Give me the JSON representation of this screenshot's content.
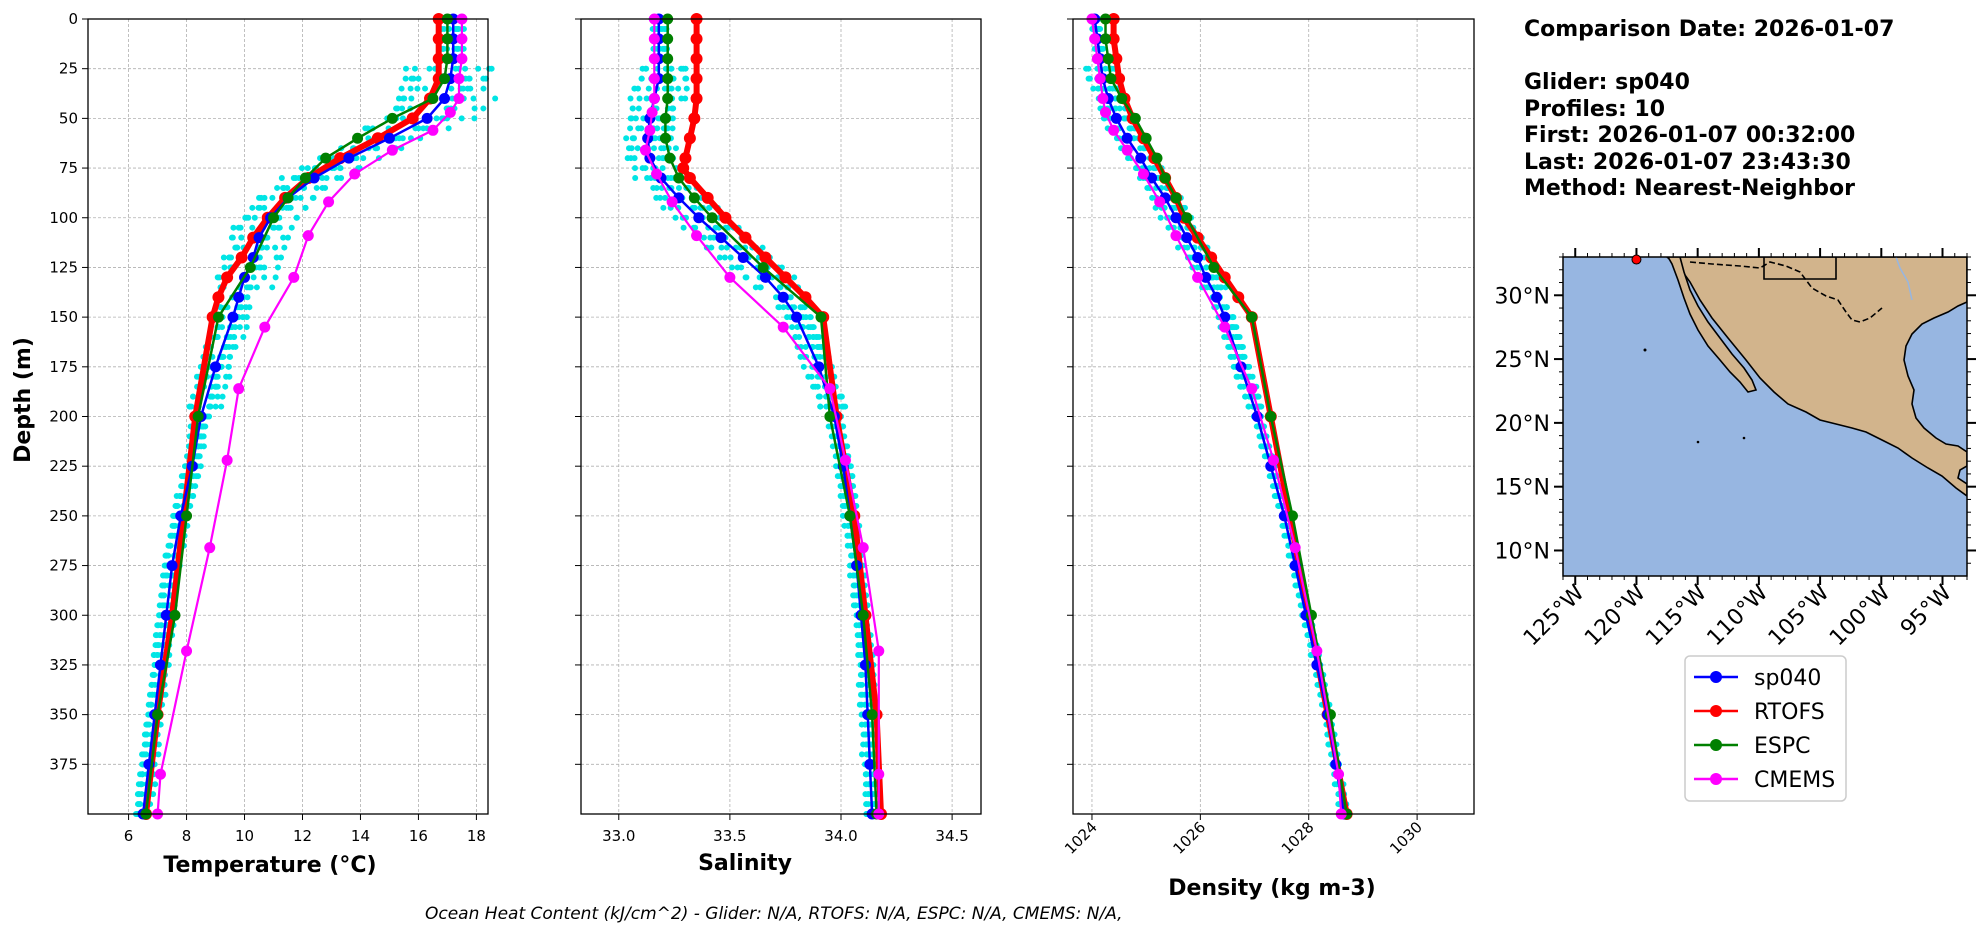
{
  "info": {
    "comparison_date": "Comparison Date: 2026-01-07",
    "glider": "Glider: sp040",
    "profiles": "Profiles: 10",
    "first": "First: 2026-01-07 00:32:00",
    "last": "Last: 2026-01-07 23:43:30",
    "method": "Method: Nearest-Neighbor"
  },
  "footer": "Ocean Heat Content (kJ/cm^2) - Glider: N/A,  RTOFS: N/A,  ESPC: N/A,  CMEMS: N/A,",
  "colors": {
    "sp040": "#0000ff",
    "RTOFS": "#ff0000",
    "ESPC": "#008000",
    "CMEMS": "#ff00ff",
    "glider_profiles": "#00e5e5",
    "ocean": "#97b6e1",
    "land": "#d2b48c"
  },
  "legend": {
    "entries": [
      "sp040",
      "RTOFS",
      "ESPC",
      "CMEMS"
    ],
    "placement": "below-map"
  },
  "map": {
    "lat_labels": [
      "30°N",
      "25°N",
      "20°N",
      "15°N",
      "10°N"
    ],
    "lon_labels": [
      "125°W",
      "120°W",
      "115°W",
      "110°W",
      "105°W",
      "100°W",
      "95°W"
    ],
    "lat_values": [
      30,
      25,
      20,
      15,
      10
    ],
    "lon_values": [
      -125,
      -120,
      -115,
      -110,
      -105,
      -100,
      -95
    ],
    "extent": {
      "lon": [
        -126,
        -93
      ],
      "lat": [
        8,
        33
      ]
    },
    "glider_position": {
      "lon": -120,
      "lat": 32.8
    }
  },
  "chart_data": [
    {
      "type": "line",
      "xlabel": "Temperature (°C)",
      "ylabel": "Depth (m)",
      "xlim": [
        4.6,
        18.4
      ],
      "ylim": [
        400,
        0
      ],
      "xticks": [
        "6",
        "8",
        "10",
        "12",
        "14",
        "16",
        "18"
      ],
      "xtick_values": [
        6,
        8,
        10,
        12,
        14,
        16,
        18
      ],
      "yticks": [
        "0",
        "25",
        "50",
        "75",
        "100",
        "125",
        "150",
        "175",
        "200",
        "225",
        "250",
        "275",
        "300",
        "325",
        "350",
        "375"
      ],
      "ytick_values": [
        0,
        25,
        50,
        75,
        100,
        125,
        150,
        175,
        200,
        225,
        250,
        275,
        300,
        325,
        350,
        375
      ],
      "grid": true,
      "series": [
        {
          "name": "sp040",
          "depth": [
            0,
            10,
            20,
            30,
            40,
            50,
            60,
            70,
            80,
            90,
            100,
            110,
            120,
            130,
            140,
            150,
            175,
            200,
            225,
            250,
            275,
            300,
            325,
            350,
            375,
            400
          ],
          "values": [
            17.2,
            17.2,
            17.2,
            17.1,
            16.9,
            16.3,
            15.0,
            13.6,
            12.4,
            11.5,
            10.9,
            10.5,
            10.3,
            10.0,
            9.8,
            9.6,
            9.0,
            8.5,
            8.2,
            7.8,
            7.5,
            7.3,
            7.1,
            6.9,
            6.7,
            6.5
          ]
        },
        {
          "name": "RTOFS",
          "depth": [
            0,
            10,
            20,
            30,
            40,
            50,
            60,
            70,
            80,
            90,
            100,
            110,
            120,
            130,
            140,
            150,
            200,
            250,
            300,
            350,
            400
          ],
          "values": [
            16.7,
            16.7,
            16.7,
            16.7,
            16.4,
            15.8,
            14.6,
            13.3,
            12.2,
            11.4,
            10.8,
            10.3,
            9.9,
            9.4,
            9.1,
            8.9,
            8.3,
            7.9,
            7.5,
            7.0,
            6.6
          ]
        },
        {
          "name": "ESPC",
          "depth": [
            0,
            10,
            20,
            30,
            40,
            50,
            60,
            70,
            80,
            90,
            100,
            125,
            150,
            200,
            250,
            300,
            350,
            400
          ],
          "values": [
            17.0,
            17.0,
            17.0,
            16.9,
            16.5,
            15.1,
            13.9,
            12.8,
            12.1,
            11.5,
            11.0,
            10.2,
            9.1,
            8.4,
            8.0,
            7.6,
            7.0,
            6.6
          ]
        },
        {
          "name": "CMEMS",
          "depth": [
            0,
            10,
            20,
            30,
            40,
            47,
            56,
            66,
            78,
            92,
            109,
            130,
            155,
            186,
            222,
            266,
            318,
            380,
            400
          ],
          "values": [
            17.5,
            17.5,
            17.5,
            17.4,
            17.4,
            17.1,
            16.5,
            15.1,
            13.8,
            12.9,
            12.2,
            11.7,
            10.7,
            9.8,
            9.4,
            8.8,
            8.0,
            7.1,
            7.0
          ]
        }
      ]
    },
    {
      "type": "line",
      "xlabel": "Salinity",
      "ylabel": "",
      "xlim": [
        32.83,
        34.63
      ],
      "ylim": [
        400,
        0
      ],
      "xticks": [
        "33.0",
        "33.5",
        "34.0",
        "34.5"
      ],
      "xtick_values": [
        33.0,
        33.5,
        34.0,
        34.5
      ],
      "grid": true,
      "series": [
        {
          "name": "sp040",
          "depth": [
            0,
            10,
            20,
            30,
            40,
            50,
            60,
            70,
            80,
            90,
            100,
            110,
            120,
            130,
            140,
            150,
            175,
            200,
            225,
            250,
            275,
            300,
            325,
            350,
            375,
            400
          ],
          "values": [
            33.18,
            33.18,
            33.18,
            33.18,
            33.16,
            33.14,
            33.13,
            33.14,
            33.19,
            33.27,
            33.36,
            33.46,
            33.56,
            33.66,
            33.74,
            33.8,
            33.9,
            33.97,
            34.01,
            34.04,
            34.07,
            34.09,
            34.11,
            34.12,
            34.13,
            34.14
          ]
        },
        {
          "name": "RTOFS",
          "depth": [
            0,
            10,
            20,
            30,
            40,
            50,
            60,
            70,
            75,
            80,
            90,
            100,
            110,
            120,
            130,
            140,
            150,
            200,
            250,
            300,
            350,
            400
          ],
          "values": [
            33.35,
            33.35,
            33.35,
            33.35,
            33.35,
            33.34,
            33.32,
            33.3,
            33.29,
            33.32,
            33.4,
            33.48,
            33.57,
            33.66,
            33.75,
            33.84,
            33.92,
            33.98,
            34.06,
            34.11,
            34.16,
            34.18
          ]
        },
        {
          "name": "ESPC",
          "depth": [
            0,
            10,
            20,
            30,
            40,
            50,
            60,
            70,
            80,
            90,
            100,
            125,
            150,
            200,
            250,
            300,
            350,
            400
          ],
          "values": [
            33.22,
            33.22,
            33.22,
            33.22,
            33.22,
            33.21,
            33.21,
            33.23,
            33.27,
            33.34,
            33.42,
            33.65,
            33.91,
            33.95,
            34.04,
            34.1,
            34.14,
            34.16
          ]
        },
        {
          "name": "CMEMS",
          "depth": [
            0,
            10,
            20,
            30,
            40,
            47,
            56,
            66,
            78,
            92,
            109,
            130,
            155,
            186,
            222,
            266,
            318,
            380,
            400
          ],
          "values": [
            33.16,
            33.16,
            33.16,
            33.16,
            33.16,
            33.15,
            33.14,
            33.12,
            33.17,
            33.24,
            33.35,
            33.5,
            33.74,
            33.95,
            34.02,
            34.1,
            34.17,
            34.17,
            34.17
          ]
        }
      ]
    },
    {
      "type": "line",
      "xlabel": "Density (kg m-3)",
      "ylabel": "",
      "xlim": [
        1023.65,
        1031.05
      ],
      "ylim": [
        400,
        0
      ],
      "xticks": [
        "1024",
        "1026",
        "1028",
        "1030"
      ],
      "xtick_values": [
        1024,
        1026,
        1028,
        1030
      ],
      "grid": true,
      "series": [
        {
          "name": "sp040",
          "depth": [
            0,
            10,
            20,
            30,
            40,
            50,
            60,
            70,
            80,
            90,
            100,
            110,
            120,
            130,
            140,
            150,
            175,
            200,
            225,
            250,
            275,
            300,
            325,
            350,
            375,
            400
          ],
          "values": [
            1024.05,
            1024.1,
            1024.15,
            1024.2,
            1024.3,
            1024.45,
            1024.65,
            1024.9,
            1025.1,
            1025.35,
            1025.55,
            1025.75,
            1025.95,
            1026.1,
            1026.3,
            1026.45,
            1026.75,
            1027.05,
            1027.3,
            1027.55,
            1027.75,
            1027.95,
            1028.15,
            1028.35,
            1028.5,
            1028.65
          ]
        },
        {
          "name": "RTOFS",
          "depth": [
            0,
            10,
            20,
            30,
            40,
            50,
            60,
            70,
            80,
            90,
            100,
            110,
            120,
            130,
            140,
            150,
            200,
            250,
            300,
            350,
            400
          ],
          "values": [
            1024.4,
            1024.4,
            1024.45,
            1024.5,
            1024.6,
            1024.75,
            1024.95,
            1025.15,
            1025.35,
            1025.55,
            1025.7,
            1025.95,
            1026.2,
            1026.45,
            1026.7,
            1026.95,
            1027.3,
            1027.65,
            1028.0,
            1028.35,
            1028.7
          ]
        },
        {
          "name": "ESPC",
          "depth": [
            0,
            10,
            20,
            30,
            40,
            50,
            60,
            70,
            80,
            90,
            100,
            125,
            150,
            200,
            250,
            300,
            350,
            400
          ],
          "values": [
            1024.25,
            1024.25,
            1024.3,
            1024.35,
            1024.55,
            1024.8,
            1025.0,
            1025.2,
            1025.35,
            1025.55,
            1025.75,
            1026.25,
            1026.95,
            1027.3,
            1027.7,
            1028.05,
            1028.4,
            1028.7
          ]
        },
        {
          "name": "CMEMS",
          "depth": [
            0,
            10,
            20,
            30,
            40,
            47,
            56,
            66,
            78,
            92,
            109,
            130,
            155,
            186,
            222,
            266,
            318,
            380,
            400
          ],
          "values": [
            1024.0,
            1024.05,
            1024.1,
            1024.15,
            1024.2,
            1024.25,
            1024.4,
            1024.65,
            1024.95,
            1025.25,
            1025.55,
            1025.95,
            1026.45,
            1026.95,
            1027.35,
            1027.75,
            1028.15,
            1028.55,
            1028.6
          ]
        }
      ]
    }
  ]
}
